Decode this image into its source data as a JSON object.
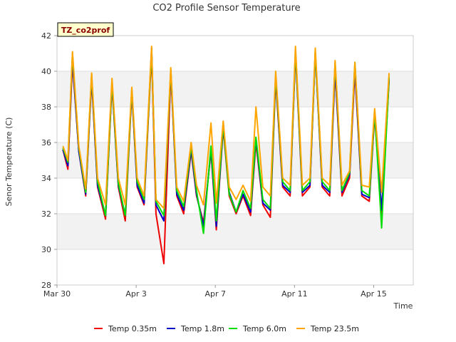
{
  "chart_data": {
    "type": "line",
    "title": "CO2 Profile Sensor Temperature",
    "xlabel": "Time",
    "ylabel": "Senor Temperature (C)",
    "station_label": "TZ_co2prof",
    "xlim": [
      0,
      18
    ],
    "ylim": [
      28,
      42
    ],
    "yticks": [
      28,
      30,
      32,
      34,
      36,
      38,
      40,
      42
    ],
    "xticks": [
      {
        "value": 0,
        "label": "Mar 30"
      },
      {
        "value": 4,
        "label": "Apr 3"
      },
      {
        "value": 8,
        "label": "Apr 7"
      },
      {
        "value": 12,
        "label": "Apr 11"
      },
      {
        "value": 16,
        "label": "Apr 15"
      }
    ],
    "bands": [
      [
        30,
        32
      ],
      [
        34,
        36
      ],
      [
        38,
        40
      ]
    ],
    "x": [
      0.3,
      0.55,
      0.78,
      1.1,
      1.45,
      1.75,
      2.05,
      2.45,
      2.78,
      3.1,
      3.45,
      3.78,
      4.05,
      4.4,
      4.78,
      5.0,
      5.4,
      5.75,
      6.05,
      6.4,
      6.78,
      7.05,
      7.4,
      7.78,
      8.05,
      8.4,
      8.7,
      9.05,
      9.4,
      9.78,
      10.05,
      10.4,
      10.78,
      11.05,
      11.4,
      11.78,
      12.05,
      12.4,
      12.78,
      13.05,
      13.4,
      13.78,
      14.05,
      14.4,
      14.78,
      15.05,
      15.4,
      15.78,
      16.05,
      16.4,
      16.78
    ],
    "series": [
      {
        "name": "Temp 0.35m",
        "color": "#ee0000",
        "values": [
          35.6,
          34.5,
          40.5,
          35.5,
          33.0,
          39.5,
          33.5,
          31.7,
          39.2,
          33.5,
          31.6,
          38.8,
          33.5,
          32.5,
          41.0,
          32.0,
          29.2,
          39.9,
          33.0,
          32.0,
          35.5,
          33.0,
          31.5,
          35.5,
          31.1,
          36.8,
          33.0,
          32.0,
          33.0,
          31.9,
          36.0,
          32.5,
          31.8,
          39.5,
          33.5,
          33.0,
          41.0,
          33.0,
          33.5,
          41.0,
          33.5,
          33.0,
          40.0,
          33.0,
          34.0,
          40.0,
          33.0,
          32.7,
          37.5,
          32.0,
          39.5
        ]
      },
      {
        "name": "Temp 1.8m",
        "color": "#0000cc",
        "values": [
          35.6,
          34.7,
          40.7,
          35.5,
          33.1,
          39.6,
          33.6,
          31.9,
          39.3,
          33.6,
          31.9,
          38.9,
          33.6,
          32.6,
          41.3,
          32.5,
          31.6,
          40.0,
          33.1,
          32.2,
          35.6,
          33.1,
          31.3,
          35.6,
          31.3,
          36.9,
          33.2,
          32.1,
          33.1,
          32.1,
          36.2,
          32.6,
          32.2,
          39.7,
          33.6,
          33.2,
          41.1,
          33.2,
          33.6,
          41.1,
          33.6,
          33.2,
          40.1,
          33.2,
          34.2,
          40.2,
          33.1,
          32.9,
          37.6,
          32.2,
          39.6
        ]
      },
      {
        "name": "Temp 6.0m",
        "color": "#00dd00",
        "values": [
          35.7,
          34.9,
          41.0,
          35.7,
          33.2,
          39.8,
          33.8,
          31.9,
          39.4,
          33.7,
          31.9,
          39.0,
          33.8,
          32.8,
          41.2,
          32.7,
          31.9,
          40.1,
          33.3,
          32.4,
          35.8,
          33.3,
          30.9,
          35.8,
          31.6,
          37.0,
          33.1,
          32.1,
          33.3,
          32.3,
          36.3,
          32.8,
          32.3,
          39.8,
          33.8,
          33.3,
          41.2,
          33.3,
          33.8,
          41.1,
          33.8,
          33.3,
          40.5,
          33.3,
          34.3,
          40.5,
          33.3,
          33.0,
          37.7,
          31.2,
          39.7
        ]
      },
      {
        "name": "Temp 23.5m",
        "color": "#ffa500",
        "values": [
          35.8,
          35.0,
          41.1,
          35.8,
          33.4,
          39.9,
          34.0,
          32.5,
          39.6,
          34.0,
          32.5,
          39.1,
          34.0,
          33.0,
          41.4,
          32.8,
          32.3,
          40.2,
          33.5,
          32.7,
          36.0,
          33.6,
          32.5,
          37.1,
          32.6,
          37.2,
          33.5,
          32.8,
          33.6,
          32.7,
          38.0,
          33.5,
          33.0,
          40.0,
          34.0,
          33.6,
          41.4,
          33.6,
          34.0,
          41.3,
          34.0,
          33.6,
          40.6,
          33.6,
          34.4,
          40.5,
          33.6,
          33.5,
          37.9,
          33.2,
          39.9
        ]
      }
    ],
    "legend_position": "bottom-center"
  }
}
